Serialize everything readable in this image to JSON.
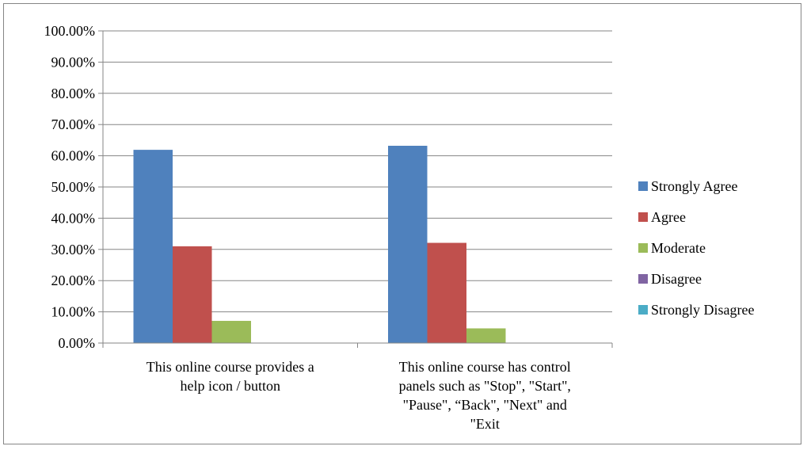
{
  "chart_data": {
    "type": "bar",
    "categories": [
      [
        "This online course provides a",
        "help icon / button"
      ],
      [
        "This online course has control",
        "panels such as \"Stop\", \"Start\",",
        "\"Pause\", “Back\", \"Next\" and",
        "\"Exit"
      ]
    ],
    "series": [
      {
        "name": "Strongly Agree",
        "color": "#4F81BD",
        "values": [
          61.9,
          63.2
        ]
      },
      {
        "name": "Agree",
        "color": "#C0504D",
        "values": [
          31.0,
          32.1
        ]
      },
      {
        "name": "Moderate",
        "color": "#9BBB59",
        "values": [
          7.1,
          4.7
        ]
      },
      {
        "name": "Disagree",
        "color": "#8064A2",
        "values": [
          0,
          0
        ]
      },
      {
        "name": "Strongly Disagree",
        "color": "#4BACC6",
        "values": [
          0,
          0
        ]
      }
    ],
    "y_ticks": [
      "0.00%",
      "10.00%",
      "20.00%",
      "30.00%",
      "40.00%",
      "50.00%",
      "60.00%",
      "70.00%",
      "80.00%",
      "90.00%",
      "100.00%"
    ],
    "ylim": [
      0,
      100
    ],
    "grid": true,
    "legend_position": "right"
  }
}
